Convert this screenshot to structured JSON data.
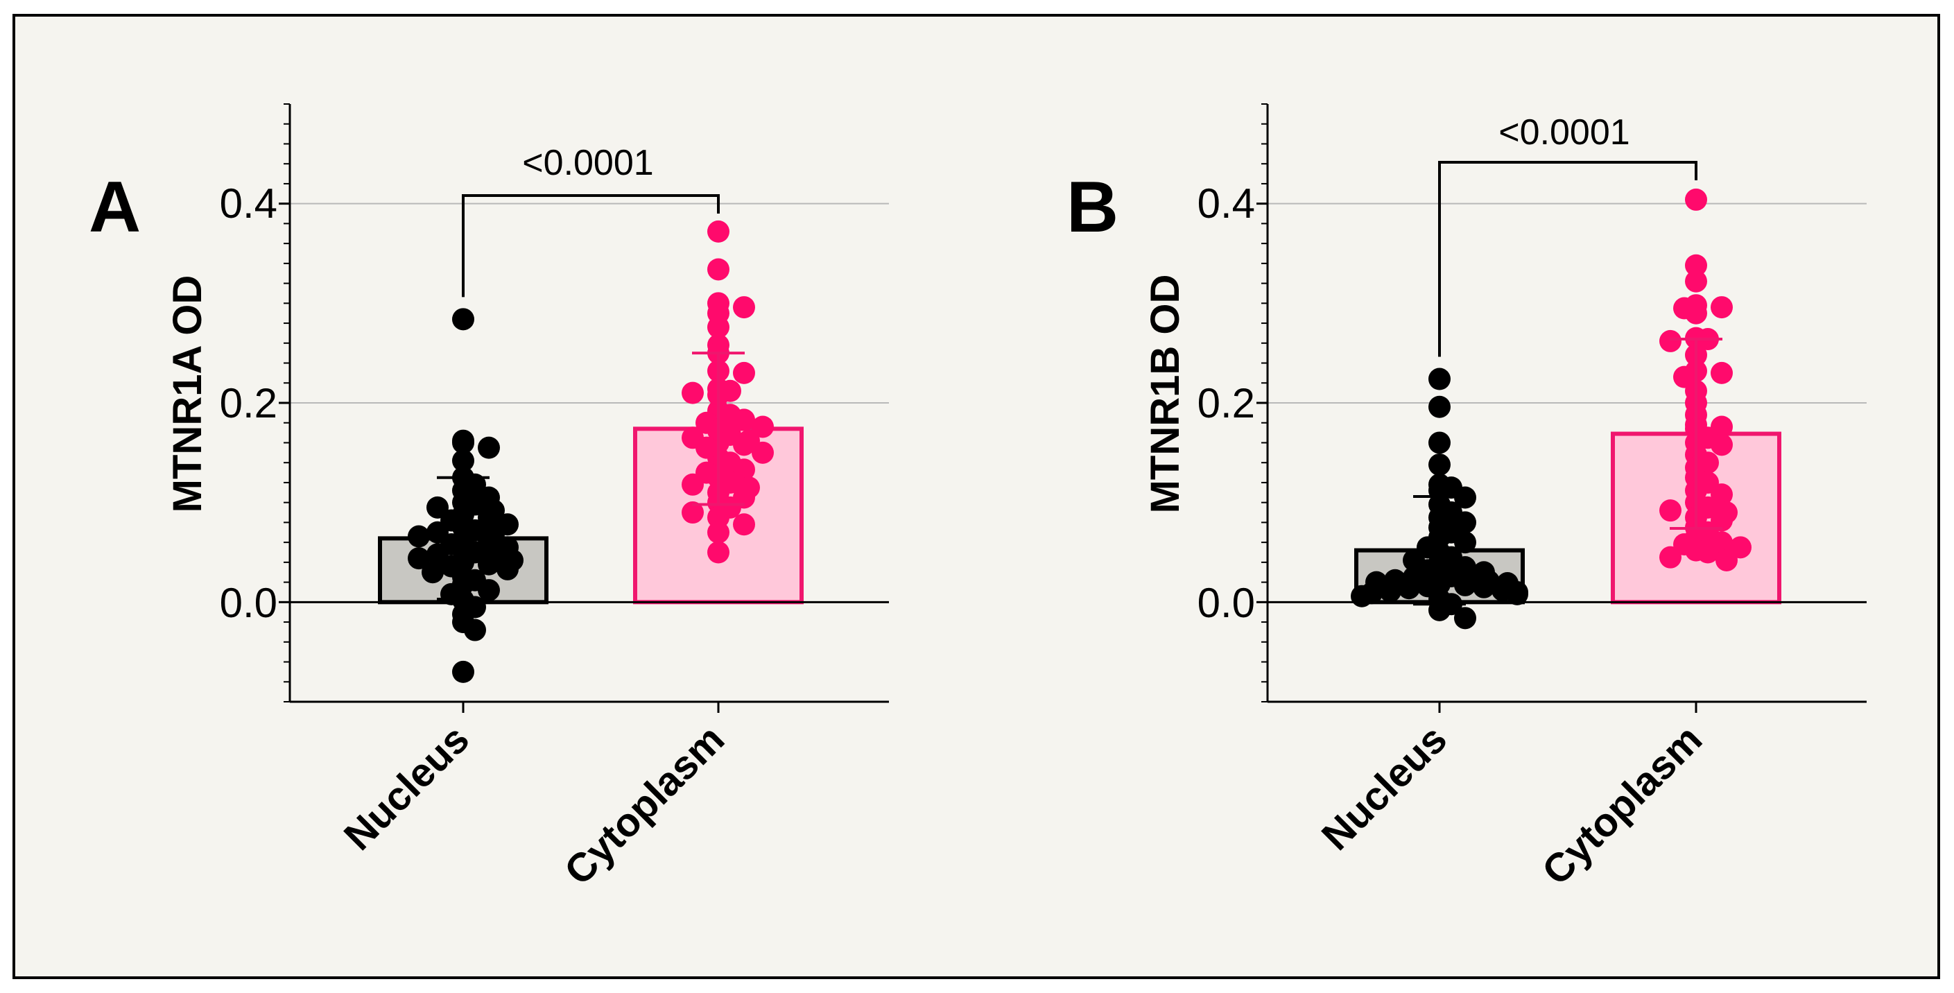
{
  "colors": {
    "background": "#f5f4ef",
    "frame": "#000000",
    "grid": "#b8b8b8",
    "nucleus_fill": "#c8c7c2",
    "nucleus_edge": "#000000",
    "nucleus_dot": "#000000",
    "cytoplasm_fill": "#ffc8da",
    "cytoplasm_edge": "#f0166e",
    "cytoplasm_dot": "#ff0a6c"
  },
  "chart_data": [
    {
      "type": "bar",
      "panel_label": "A",
      "title": "",
      "xlabel": "",
      "ylabel": "MTNR1A OD",
      "ylim": [
        -0.1,
        0.5
      ],
      "yticks": [
        0.0,
        0.2,
        0.4
      ],
      "ytick_labels": [
        "0.0",
        "0.2",
        "0.4"
      ],
      "grid": true,
      "categories": [
        "Nucleus",
        "Cytoplasm"
      ],
      "values": [
        0.064,
        0.174
      ],
      "error_sd": [
        0.061,
        0.076
      ],
      "significance": {
        "label": "<0.0001",
        "between": [
          "Nucleus",
          "Cytoplasm"
        ]
      },
      "series": [
        {
          "category": "Nucleus",
          "points": [
            0.284,
            0.162,
            0.16,
            0.155,
            0.142,
            0.125,
            0.118,
            0.112,
            0.105,
            0.1,
            0.098,
            0.095,
            0.092,
            0.088,
            0.085,
            0.082,
            0.078,
            0.075,
            0.072,
            0.07,
            0.068,
            0.066,
            0.062,
            0.06,
            0.058,
            0.055,
            0.052,
            0.05,
            0.048,
            0.046,
            0.044,
            0.042,
            0.04,
            0.038,
            0.036,
            0.033,
            0.03,
            0.025,
            0.022,
            0.018,
            0.012,
            0.008,
            0.002,
            -0.005,
            -0.012,
            -0.02,
            -0.028,
            -0.07
          ]
        },
        {
          "category": "Cytoplasm",
          "points": [
            0.372,
            0.334,
            0.3,
            0.296,
            0.29,
            0.276,
            0.258,
            0.25,
            0.232,
            0.23,
            0.214,
            0.212,
            0.21,
            0.208,
            0.192,
            0.188,
            0.185,
            0.183,
            0.18,
            0.176,
            0.172,
            0.168,
            0.165,
            0.162,
            0.16,
            0.158,
            0.155,
            0.15,
            0.145,
            0.14,
            0.136,
            0.133,
            0.13,
            0.125,
            0.12,
            0.118,
            0.115,
            0.11,
            0.105,
            0.1,
            0.095,
            0.09,
            0.085,
            0.078,
            0.07,
            0.05
          ]
        }
      ]
    },
    {
      "type": "bar",
      "panel_label": "B",
      "title": "",
      "xlabel": "",
      "ylabel": "MTNR1B OD",
      "ylim": [
        -0.1,
        0.5
      ],
      "yticks": [
        0.0,
        0.2,
        0.4
      ],
      "ytick_labels": [
        "0.0",
        "0.2",
        "0.4"
      ],
      "grid": true,
      "categories": [
        "Nucleus",
        "Cytoplasm"
      ],
      "values": [
        0.052,
        0.169
      ],
      "error_sd": [
        0.054,
        0.095
      ],
      "significance": {
        "label": "<0.0001",
        "between": [
          "Nucleus",
          "Cytoplasm"
        ]
      },
      "series": [
        {
          "category": "Nucleus",
          "points": [
            0.224,
            0.196,
            0.16,
            0.138,
            0.118,
            0.115,
            0.112,
            0.105,
            0.098,
            0.09,
            0.085,
            0.08,
            0.075,
            0.07,
            0.065,
            0.06,
            0.055,
            0.05,
            0.045,
            0.042,
            0.04,
            0.035,
            0.032,
            0.03,
            0.028,
            0.026,
            0.025,
            0.024,
            0.022,
            0.021,
            0.02,
            0.019,
            0.018,
            0.017,
            0.016,
            0.015,
            0.014,
            0.012,
            0.011,
            0.01,
            0.009,
            0.008,
            0.006,
            0.003,
            -0.002,
            -0.008,
            -0.016
          ]
        },
        {
          "category": "Cytoplasm",
          "points": [
            0.404,
            0.338,
            0.322,
            0.298,
            0.296,
            0.295,
            0.29,
            0.265,
            0.264,
            0.262,
            0.248,
            0.232,
            0.23,
            0.226,
            0.212,
            0.2,
            0.188,
            0.178,
            0.176,
            0.174,
            0.165,
            0.16,
            0.158,
            0.148,
            0.14,
            0.135,
            0.125,
            0.12,
            0.112,
            0.108,
            0.1,
            0.095,
            0.092,
            0.09,
            0.085,
            0.082,
            0.075,
            0.07,
            0.065,
            0.06,
            0.058,
            0.055,
            0.052,
            0.05,
            0.045,
            0.042
          ]
        }
      ]
    }
  ]
}
